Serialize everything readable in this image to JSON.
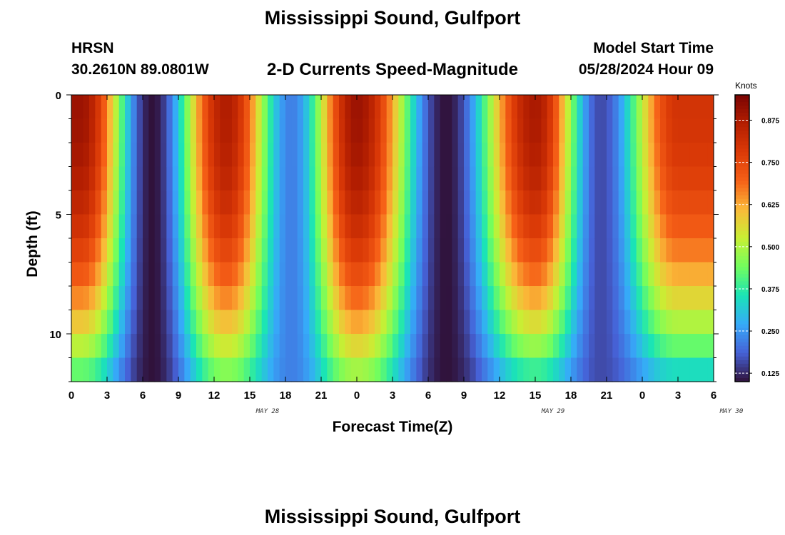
{
  "header": {
    "title": "Mississippi Sound, Gulfport",
    "station": "HRSN",
    "coordinates": "30.2610N  89.0801W",
    "subtitle": "2-D Currents Speed-Magnitude",
    "model_start_label": "Model Start Time",
    "model_start_value": "05/28/2024 Hour 09",
    "footer_title": "Mississippi Sound, Gulfport"
  },
  "chart_data": {
    "type": "heatmap",
    "title": "2-D Currents Speed-Magnitude",
    "xlabel": "Forecast Time(Z)",
    "ylabel": "Depth (ft)",
    "x_tick_labels": [
      "0",
      "3",
      "6",
      "9",
      "12",
      "15",
      "18",
      "21",
      "0",
      "3",
      "6",
      "9",
      "12",
      "15",
      "18",
      "21",
      "0",
      "3",
      "6"
    ],
    "date_labels": [
      {
        "label": "MAY 28",
        "at_tick": 6
      },
      {
        "label": "MAY 29",
        "at_tick": 14
      },
      {
        "label": "MAY 30",
        "at_tick": 19
      }
    ],
    "x_range_hours": [
      0,
      54
    ],
    "y_tick_labels": [
      "0",
      "5",
      "10"
    ],
    "y_range_ft": [
      0,
      12
    ],
    "y_inverted": true,
    "colorbar": {
      "units": "Knots",
      "range": [
        0.1,
        0.95
      ],
      "tick_labels": [
        "0.875",
        "0.750",
        "0.625",
        "0.500",
        "0.375",
        "0.250",
        "0.125"
      ],
      "tick_values": [
        0.875,
        0.75,
        0.625,
        0.5,
        0.375,
        0.25,
        0.125
      ]
    },
    "speed_peaks_knots": [
      {
        "hour": 0.8,
        "surface": 0.9,
        "bottom": 0.38
      },
      {
        "hour": 13.0,
        "surface": 0.87,
        "bottom": 0.42
      },
      {
        "hour": 24.0,
        "surface": 0.9,
        "bottom": 0.45
      },
      {
        "hour": 39.0,
        "surface": 0.88,
        "bottom": 0.34
      },
      {
        "hour": 51.0,
        "surface": 0.8,
        "bottom": 0.3
      }
    ],
    "speed_minima_knots": [
      {
        "hour": 6.8,
        "value": 0.1
      },
      {
        "hour": 18.5,
        "value": 0.22
      },
      {
        "hour": 31.5,
        "value": 0.1
      },
      {
        "hour": 44.5,
        "value": 0.16
      }
    ]
  }
}
